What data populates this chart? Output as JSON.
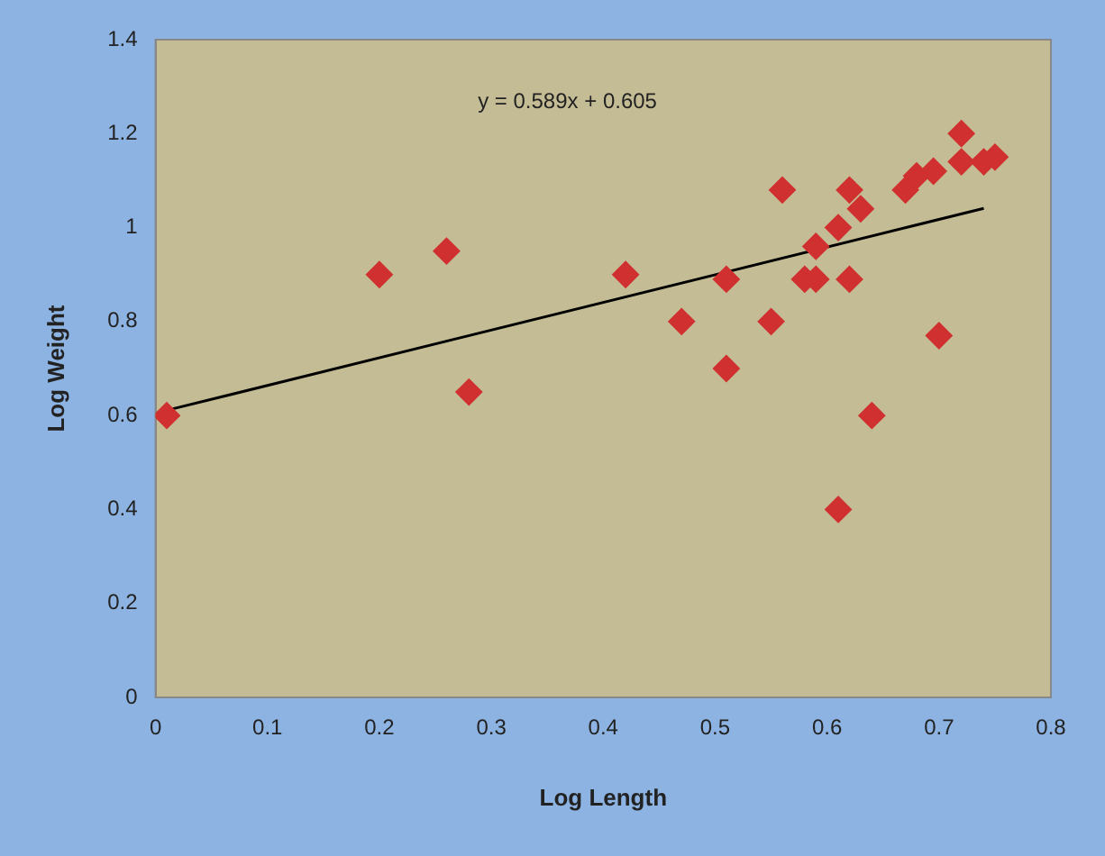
{
  "chart_data": {
    "type": "scatter",
    "xlabel": "Log Length",
    "ylabel": "Log Weight",
    "xlim": [
      0,
      0.8
    ],
    "xticks": [
      0,
      0.1,
      0.2,
      0.3,
      0.4,
      0.5,
      0.6,
      0.7,
      0.8
    ],
    "ylim": [
      0,
      1.4
    ],
    "yticks": [
      0,
      0.2,
      0.4,
      0.6,
      0.8,
      1,
      1.2,
      1.4
    ],
    "grid": false,
    "legend": false,
    "marker": "diamond",
    "annotations": [
      "y = 0.589x + 0.605"
    ],
    "series": [
      {
        "color": "#d03030",
        "x": [
          0.01,
          0.2,
          0.26,
          0.28,
          0.42,
          0.47,
          0.51,
          0.51,
          0.55,
          0.56,
          0.58,
          0.59,
          0.59,
          0.61,
          0.61,
          0.62,
          0.62,
          0.63,
          0.64,
          0.67,
          0.68,
          0.695,
          0.7,
          0.72,
          0.72,
          0.74,
          0.75
        ],
        "values": [
          0.6,
          0.9,
          0.95,
          0.65,
          0.9,
          0.8,
          0.7,
          0.89,
          0.8,
          1.08,
          0.89,
          0.89,
          0.96,
          0.4,
          1.0,
          1.08,
          0.89,
          1.04,
          0.6,
          1.08,
          1.11,
          1.12,
          0.77,
          1.2,
          1.14,
          1.14,
          1.15
        ]
      },
      {
        "type": "line",
        "color": "#000000",
        "marker": "none",
        "x": [
          0.01,
          0.74
        ],
        "values": [
          0.611,
          1.041
        ]
      }
    ]
  }
}
